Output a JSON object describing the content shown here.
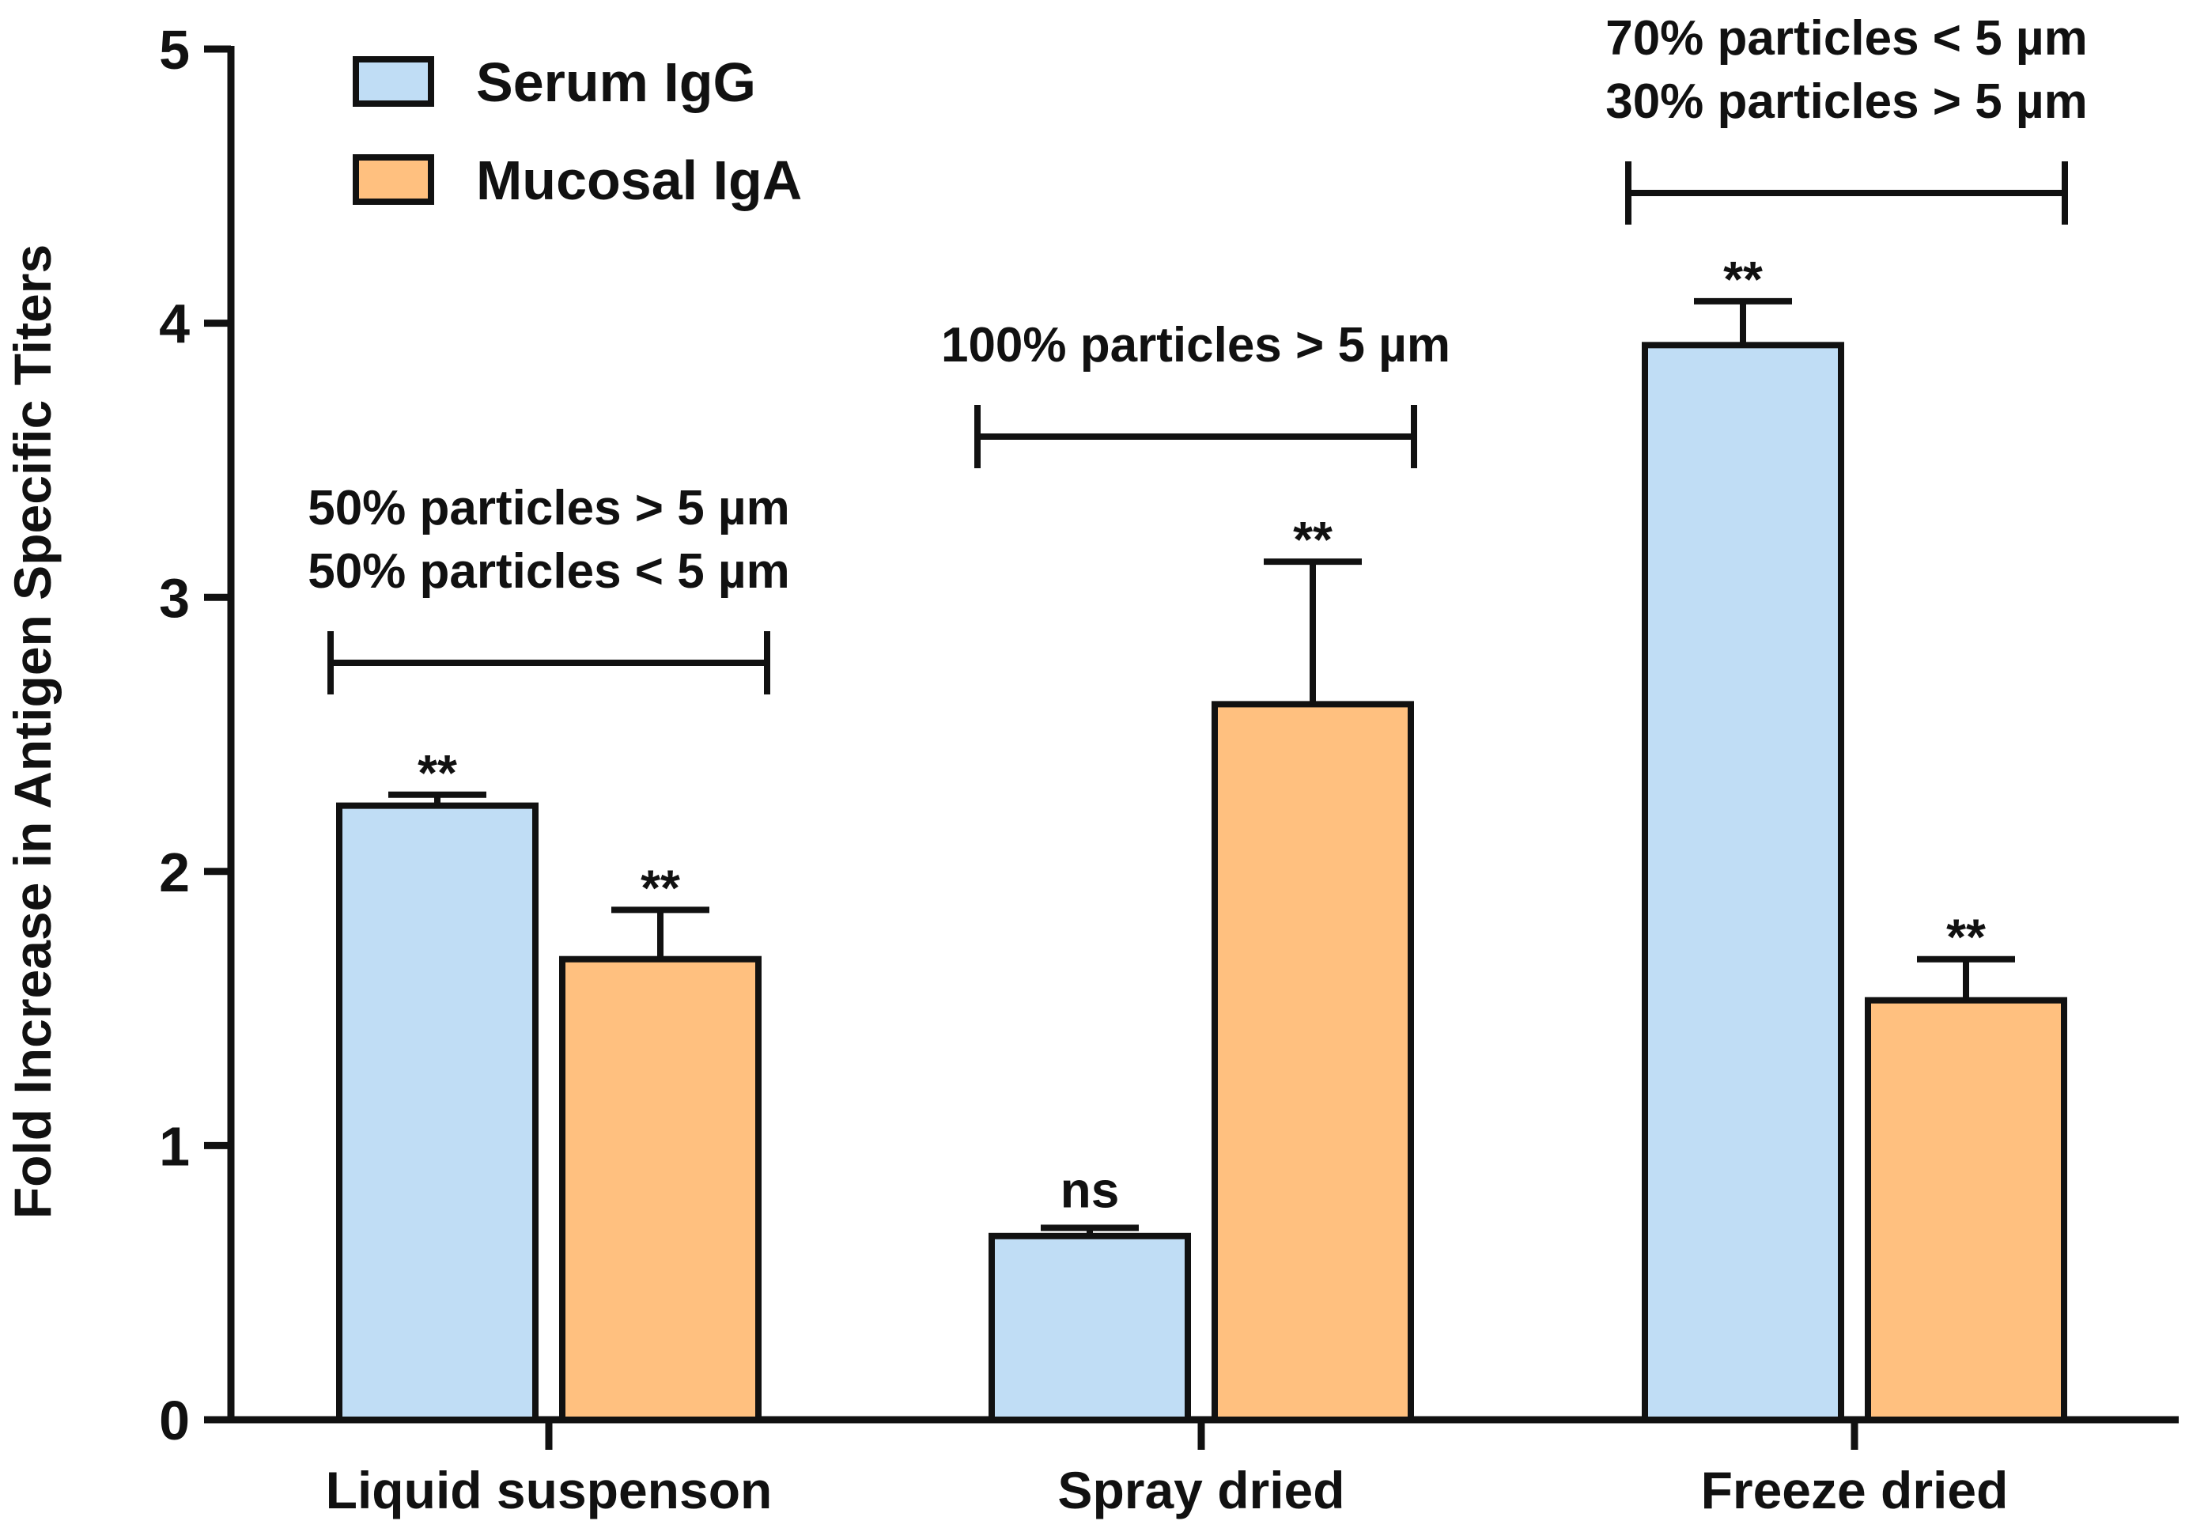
{
  "chart_data": {
    "type": "bar",
    "ylabel": "Fold Increase in Antigen Specific Titers",
    "xlabel": "",
    "ylim": [
      0,
      5
    ],
    "yticks": [
      0,
      1,
      2,
      3,
      4,
      5
    ],
    "categories": [
      "Liquid suspenson",
      "Spray dried",
      "Freeze dried"
    ],
    "series": [
      {
        "name": "Serum IgG",
        "color": "#c0ddf5",
        "values": [
          2.24,
          0.67,
          3.92
        ],
        "errors": [
          0.04,
          0.03,
          0.16
        ],
        "significance": [
          "**",
          "ns",
          "**"
        ]
      },
      {
        "name": "Mucosal IgA",
        "color": "#ffc07f",
        "values": [
          1.68,
          2.61,
          1.53
        ],
        "errors": [
          0.18,
          0.52,
          0.15
        ],
        "significance": [
          "**",
          "**",
          "**"
        ]
      }
    ],
    "legend_position": "top-left",
    "annotations": [
      {
        "group": 0,
        "lines": [
          "50% particles > 5 µm",
          "50% particles < 5 µm"
        ]
      },
      {
        "group": 1,
        "lines": [
          "100% particles > 5 µm"
        ]
      },
      {
        "group": 2,
        "lines": [
          "70% particles < 5 µm",
          "30% particles > 5 µm"
        ]
      }
    ]
  }
}
